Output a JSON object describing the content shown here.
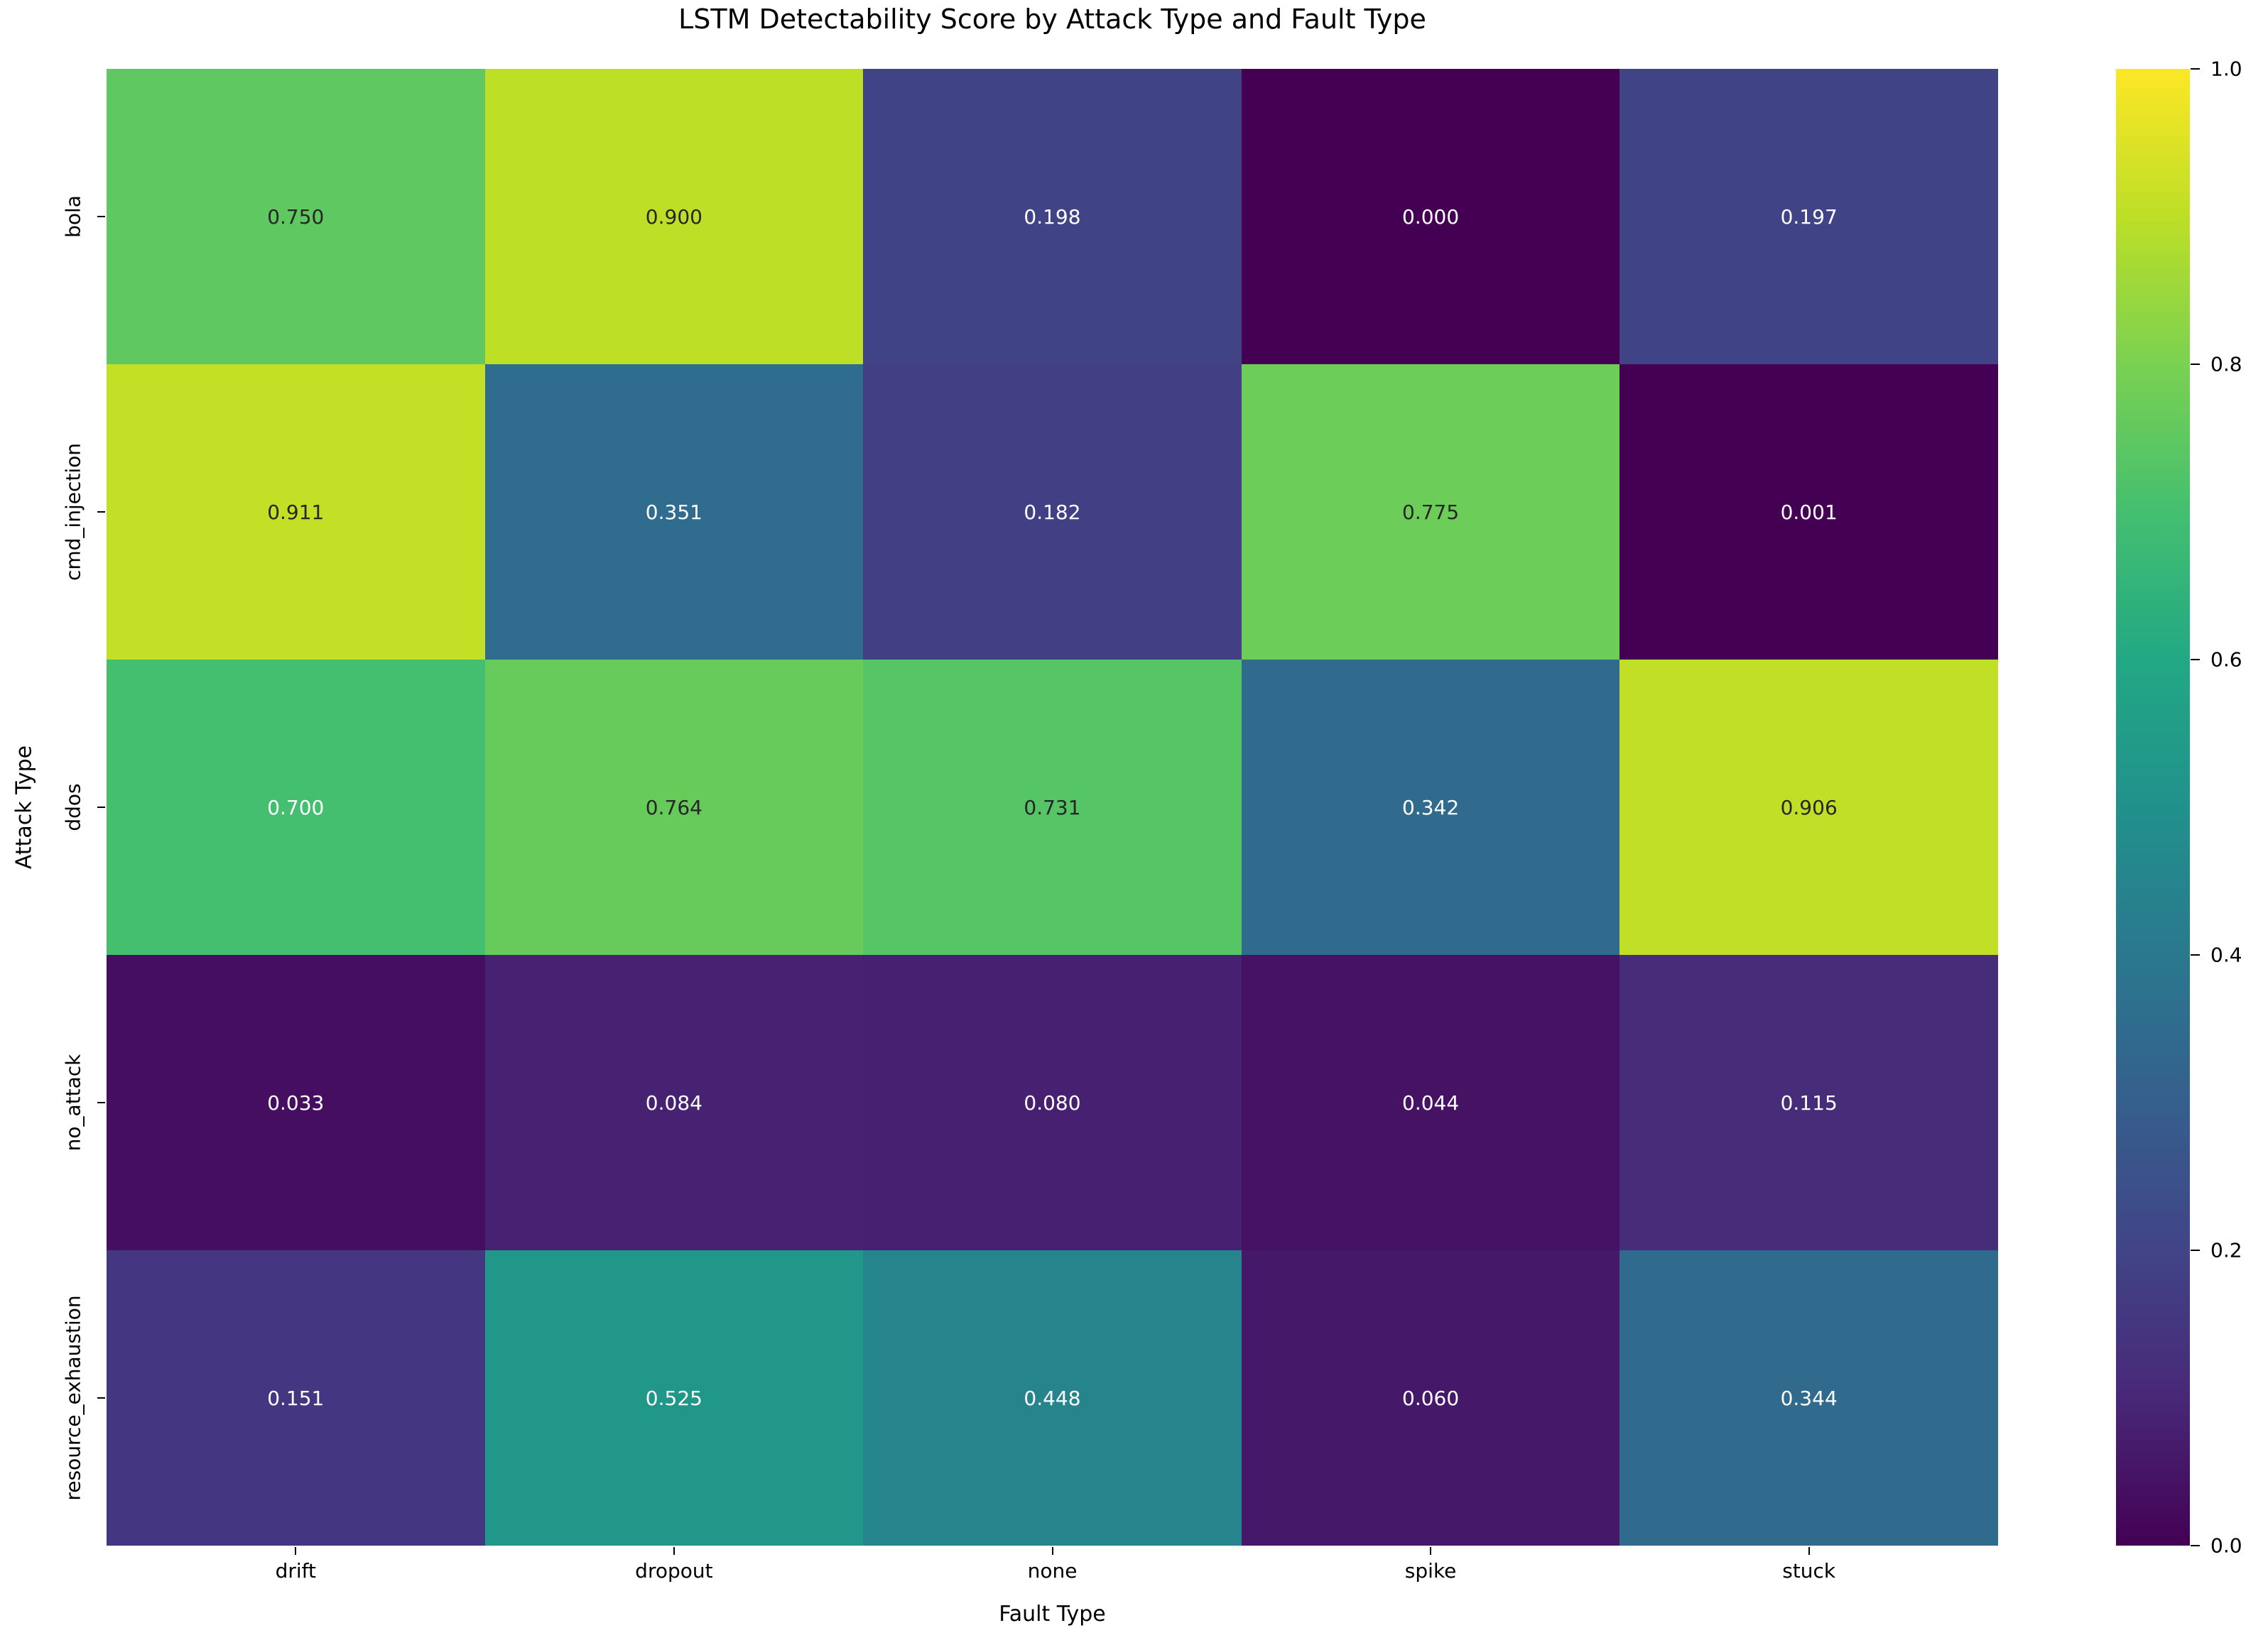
{
  "chart_data": {
    "type": "heatmap",
    "title": "LSTM Detectability Score by Attack Type and Fault Type",
    "xlabel": "Fault Type",
    "ylabel": "Attack Type",
    "x_categories": [
      "drift",
      "dropout",
      "none",
      "spike",
      "stuck"
    ],
    "y_categories": [
      "bola",
      "cmd_injection",
      "ddos",
      "no_attack",
      "resource_exhaustion"
    ],
    "values": [
      [
        0.75,
        0.9,
        0.198,
        0.0,
        0.197
      ],
      [
        0.911,
        0.351,
        0.182,
        0.775,
        0.001
      ],
      [
        0.7,
        0.764,
        0.731,
        0.342,
        0.906
      ],
      [
        0.033,
        0.084,
        0.08,
        0.044,
        0.115
      ],
      [
        0.151,
        0.525,
        0.448,
        0.06,
        0.344
      ]
    ],
    "value_decimals": 3,
    "colormap": "viridis",
    "annotation_colors": {
      "light_text": "#ffffff",
      "dark_text": "#262626"
    },
    "colorbar": {
      "min": 0.0,
      "max": 1.0,
      "tick_labels": [
        "1.0",
        "0.8",
        "0.6",
        "0.4",
        "0.2",
        "0.0"
      ]
    },
    "legend_position": "right-colorbar",
    "grid": false
  }
}
